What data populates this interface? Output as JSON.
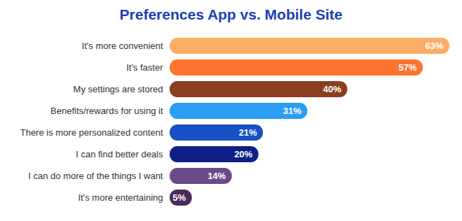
{
  "chart_data": {
    "type": "bar",
    "orientation": "horizontal",
    "title": "Preferences App vs. Mobile Site",
    "categories": [
      "It's more convenient",
      "It's faster",
      "My settings are stored",
      "Benefits/rewards for using it",
      "There is more personalized content",
      "I can find better deals",
      "I can do more of the things I want",
      "It's more entertaining"
    ],
    "values": [
      63,
      57,
      40,
      31,
      21,
      20,
      14,
      5
    ],
    "value_labels": [
      "63%",
      "57%",
      "40%",
      "31%",
      "21%",
      "20%",
      "14%",
      "5%"
    ],
    "colors": [
      "#fbad64",
      "#fd7430",
      "#8a3f1e",
      "#2a9df4",
      "#1652c6",
      "#0f1f8a",
      "#6b4a8a",
      "#4a2a5a"
    ],
    "xlim": [
      0,
      63
    ],
    "data_labels": true,
    "tick_labels": "y"
  }
}
